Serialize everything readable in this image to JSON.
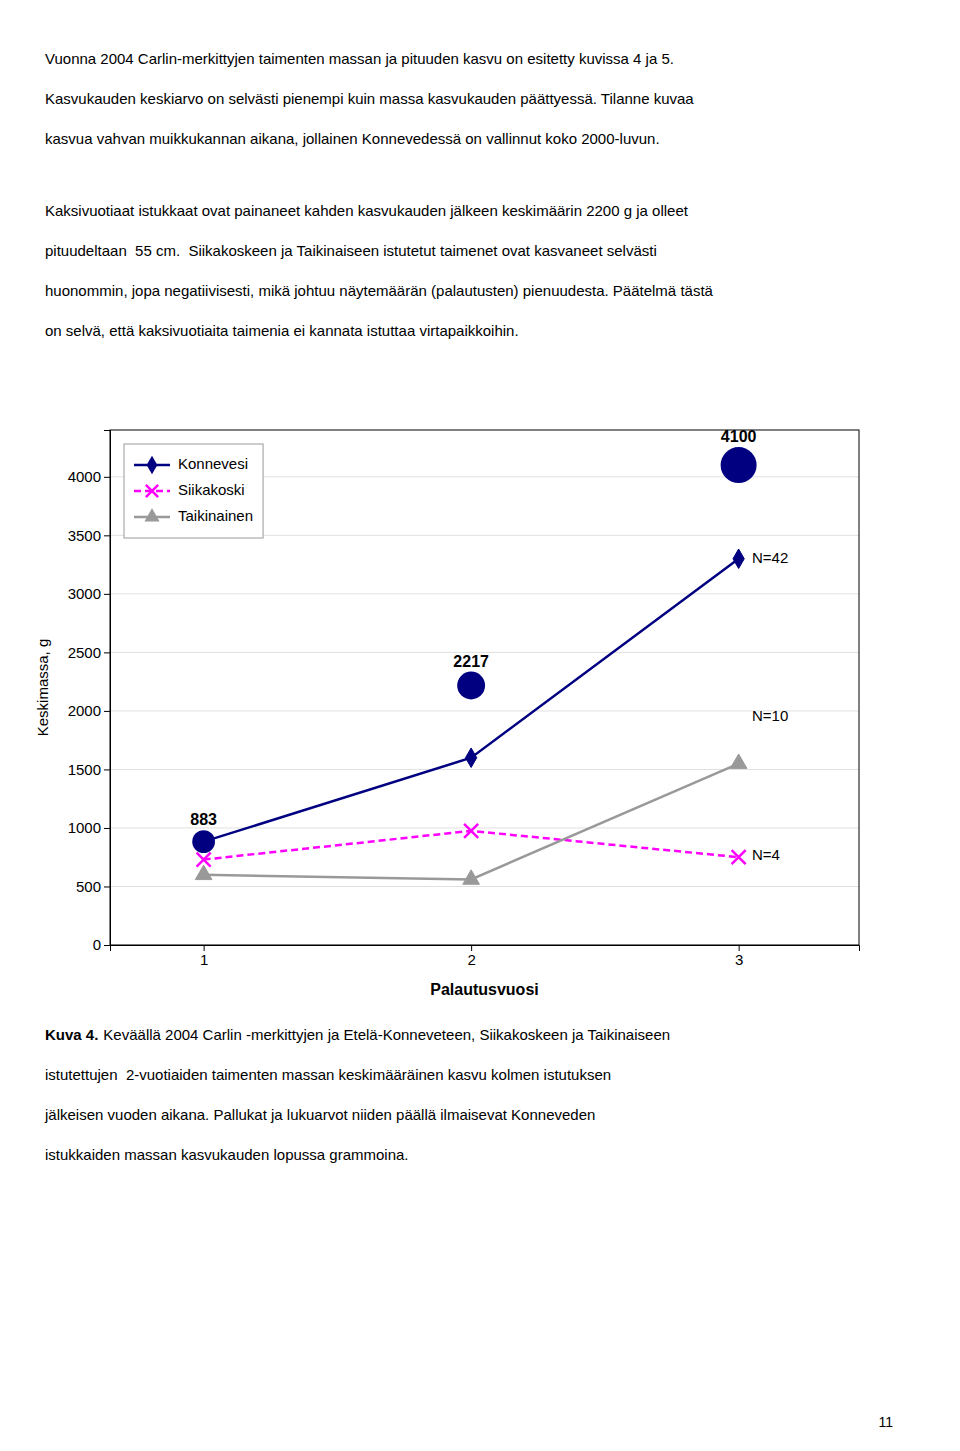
{
  "paragraphs": [
    [
      "Vuonna 2004 Carlin-merkittyjen taimenten massan ja pituuden kasvu on esitetty kuvissa 4 ja 5.",
      "Kasvukauden keskiarvo on selvästi pienempi kuin massa kasvukauden päättyessä. Tilanne kuvaa",
      "kasvua vahvan muikkukannan aikana, jollainen Konnevedessä on vallinnut koko 2000-luvun."
    ],
    [
      "Kaksivuotiaat istukkaat ovat painaneet kahden kasvukauden jälkeen keskimäärin 2200 g ja olleet",
      "pituudeltaan  55 cm.  Siikakoskeen ja Taikinaiseen istutetut taimenet ovat kasvaneet selvästi",
      "huonommin, jopa negatiivisesti, mikä johtuu näytemäärän (palautusten) pienuudesta. Päätelmä tästä",
      "on selvä, että kaksivuotiaita taimenia ei kannata istuttaa virtapaikkoihin."
    ]
  ],
  "chart_data": {
    "type": "line",
    "x": [
      1,
      2,
      3
    ],
    "series": [
      {
        "name": "Konnevesi",
        "color": "#000080",
        "marker": "diamond",
        "line_style": "solid",
        "values": [
          883,
          1600,
          3300
        ]
      },
      {
        "name": "Siikakoski",
        "color": "#FF00FF",
        "marker": "x",
        "line_style": "dashed",
        "values": [
          730,
          975,
          750
        ]
      },
      {
        "name": "Taikinainen",
        "color": "#999999",
        "marker": "triangle",
        "line_style": "solid",
        "values": [
          600,
          560,
          1550
        ]
      },
      {
        "type": "scatter",
        "color": "#000080",
        "marker": "circle",
        "data_labels": true,
        "values": [
          883,
          2217,
          4100
        ],
        "sizes": [
          200,
          300,
          500
        ]
      }
    ],
    "annotations": [
      {
        "text": "N=42",
        "x": 3.05,
        "y": 3300
      },
      {
        "text": "N=10",
        "x": 3.05,
        "y": 1950
      },
      {
        "text": "N=4",
        "x": 3.05,
        "y": 760
      }
    ],
    "xlabel": "Palautusvuosi",
    "ylabel": "Keskimassa, g",
    "xlim": [
      0.65,
      3.45
    ],
    "ylim": [
      0,
      4400
    ],
    "xticks": [
      1,
      2,
      3
    ],
    "yticks": [
      0,
      500,
      1000,
      1500,
      2000,
      2500,
      3000,
      3500,
      4000
    ],
    "grid": true,
    "legend": "upper left"
  },
  "caption_label": "Kuva 4.",
  "caption": [
    "Keväällä 2004 Carlin -merkittyjen ja Etelä-Konneveteen, Siikakoskeen ja Taikinaiseen",
    "istutettujen  2-vuotiaiden taimenten massan keskimääräinen kasvu kolmen istutuksen",
    "jälkeisen vuoden aikana. Pallukat ja lukuarvot niiden päällä ilmaisevat Konneveden",
    "istukkaiden massan kasvukauden lopussa grammoina."
  ],
  "page_number": "11"
}
